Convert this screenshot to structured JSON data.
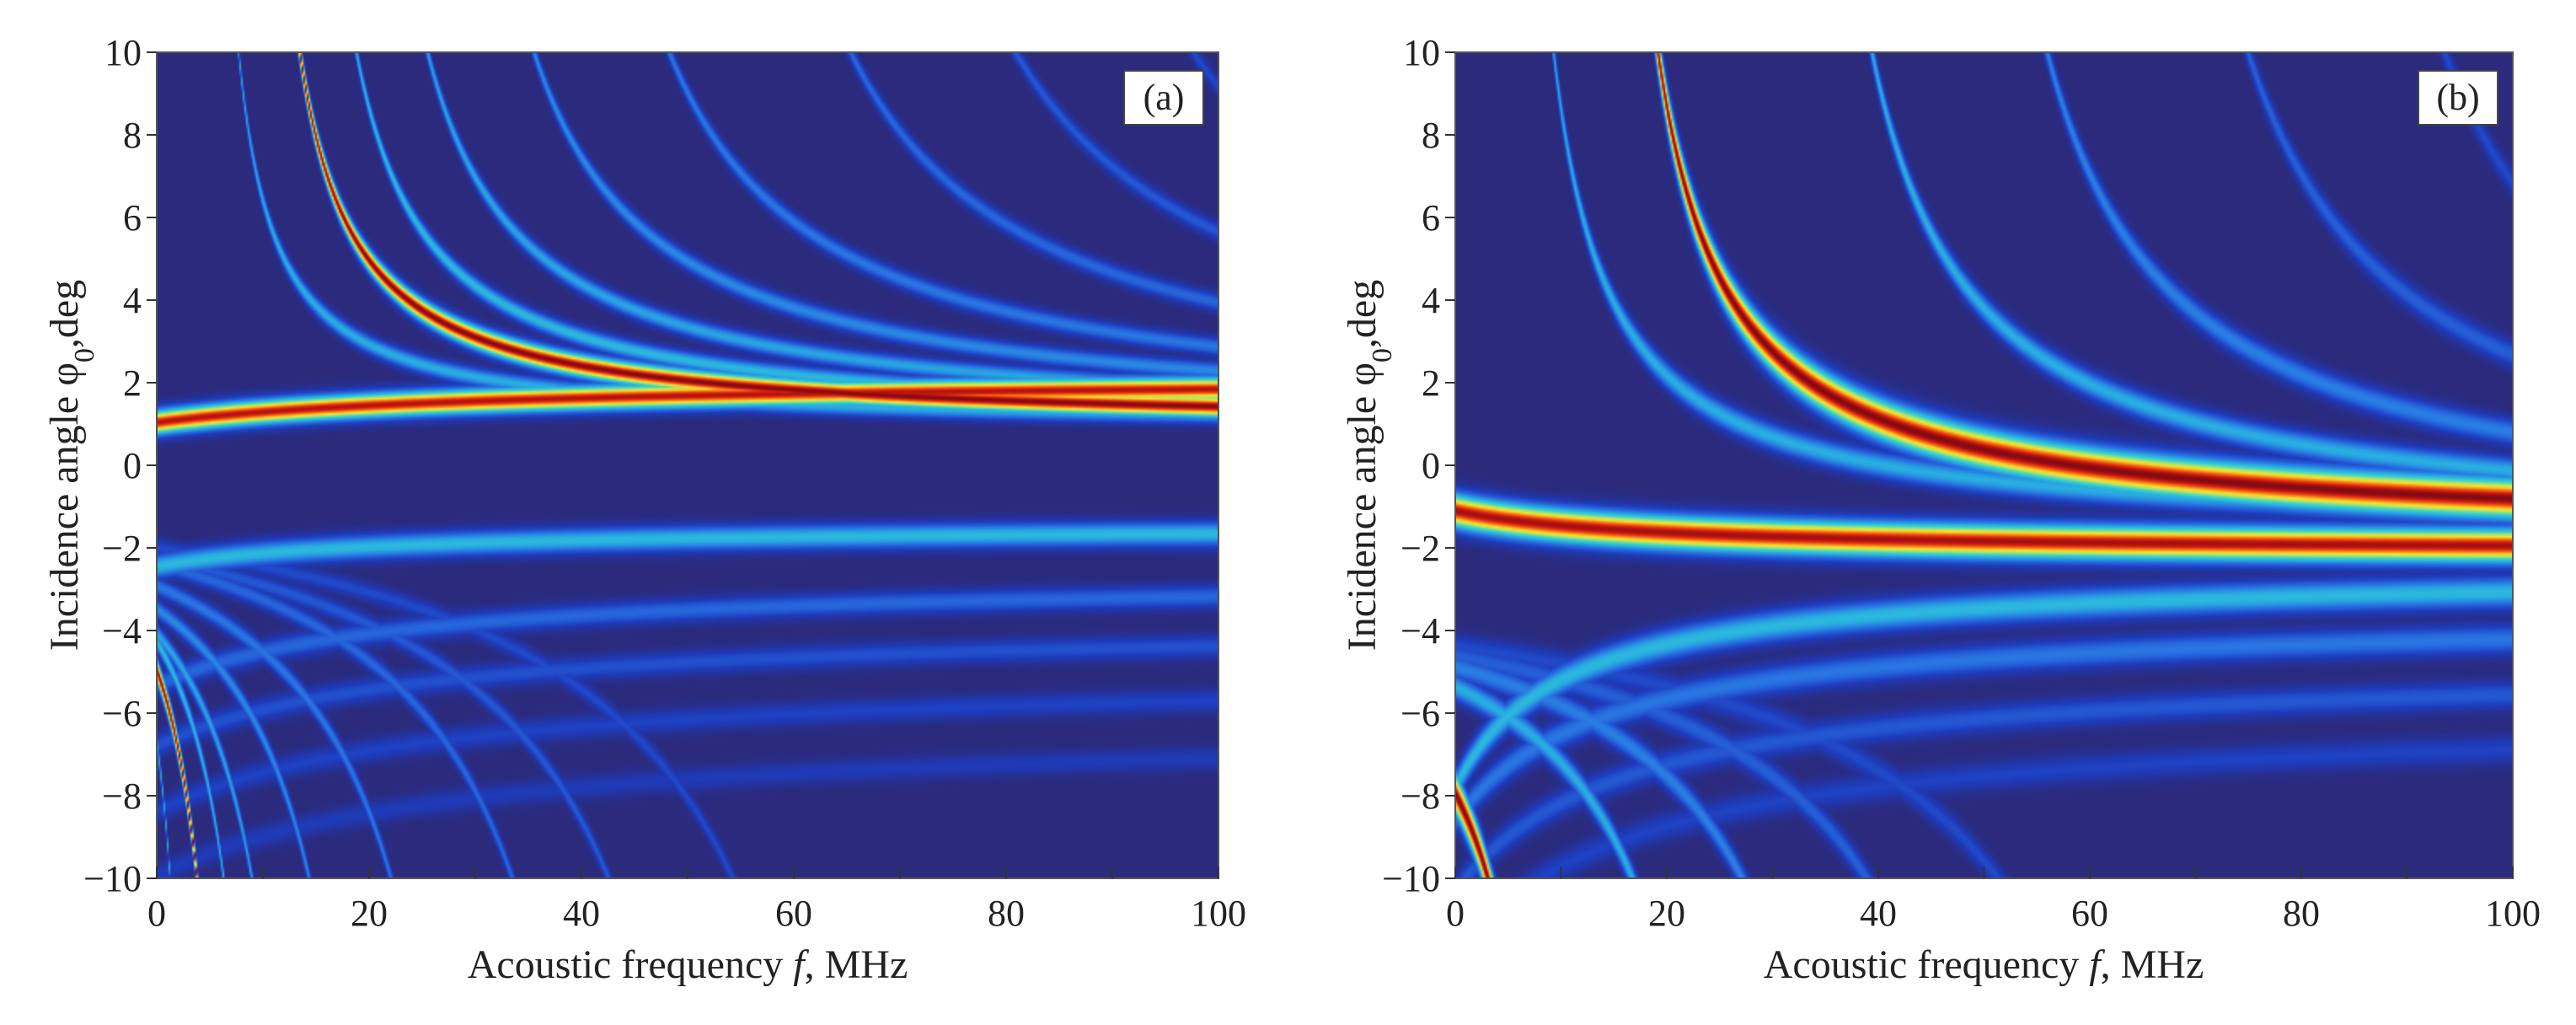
{
  "chart_data": [
    {
      "type": "heatmap",
      "panel_label": "(a)",
      "xlabel": "Acoustic frequency",
      "xlabel_var": "f",
      "xlabel_unit": ", MHz",
      "ylabel_prefix": "Incidence angle φ",
      "ylabel_sub": "0",
      "ylabel_suffix": ",deg",
      "xlim": [
        0,
        100
      ],
      "ylim": [
        -10,
        10
      ],
      "xticks": [
        0,
        20,
        40,
        60,
        80,
        100
      ],
      "yticks": [
        -10,
        -8,
        -6,
        -4,
        -2,
        0,
        2,
        4,
        6,
        8,
        10
      ],
      "ytick_labels": [
        "−10",
        "−8",
        "−6",
        "−4",
        "−2",
        "0",
        "2",
        "4",
        "6",
        "8",
        "10"
      ],
      "colormap": "jet",
      "background_color": "#2b2a7c",
      "curves": [
        {
          "name": "main-upper",
          "f0": 8.2,
          "a": 0.9,
          "b": 48,
          "intensity": 1.0,
          "width": 0.28
        },
        {
          "name": "main-lower",
          "f0": -32,
          "a": 2.1,
          "b": -34,
          "intensity": 0.97,
          "width": 0.3
        },
        {
          "name": "side-1",
          "f0": 4.2,
          "a": 0.9,
          "b": 32,
          "intensity": 0.42,
          "width": 0.22
        },
        {
          "name": "side-2",
          "f0": 12.0,
          "a": 0.9,
          "b": 62,
          "intensity": 0.45,
          "width": 0.22
        },
        {
          "name": "side-3",
          "f0": 16.5,
          "a": 0.9,
          "b": 82,
          "intensity": 0.4,
          "width": 0.22
        },
        {
          "name": "side-4",
          "f0": 24,
          "a": 0.9,
          "b": 105,
          "intensity": 0.34,
          "width": 0.22
        },
        {
          "name": "side-5",
          "f0": 34,
          "a": 0.9,
          "b": 130,
          "intensity": 0.3,
          "width": 0.22
        },
        {
          "name": "side-6",
          "f0": 48,
          "a": 0.9,
          "b": 158,
          "intensity": 0.26,
          "width": 0.22
        },
        {
          "name": "side-7",
          "f0": 60,
          "a": 0.9,
          "b": 190,
          "intensity": 0.22,
          "width": 0.22
        },
        {
          "name": "side-8",
          "f0": 74,
          "a": 0.9,
          "b": 215,
          "intensity": 0.18,
          "width": 0.22
        },
        {
          "name": "low-1",
          "f0": -20,
          "a": -1.5,
          "b": -19,
          "intensity": 0.45,
          "width": 0.3
        },
        {
          "name": "low-2",
          "f0": -22,
          "a": -2.7,
          "b": -58,
          "intensity": 0.26,
          "width": 0.28
        },
        {
          "name": "low-3",
          "f0": -24,
          "a": -3.8,
          "b": -72,
          "intensity": 0.2,
          "width": 0.28
        },
        {
          "name": "low-4",
          "f0": -26,
          "a": -5.0,
          "b": -88,
          "intensity": 0.16,
          "width": 0.28
        },
        {
          "name": "low-5",
          "f0": -28,
          "a": -6.3,
          "b": -102,
          "intensity": 0.13,
          "width": 0.28
        }
      ]
    },
    {
      "type": "heatmap",
      "panel_label": "(b)",
      "xlabel": "Acoustic frequency",
      "xlabel_var": "f",
      "xlabel_unit": ", MHz",
      "ylabel_prefix": "Incidence angle φ",
      "ylabel_sub": "0",
      "ylabel_suffix": ",deg",
      "xlim": [
        0,
        100
      ],
      "ylim": [
        -10,
        10
      ],
      "xticks": [
        0,
        20,
        40,
        60,
        80,
        100
      ],
      "yticks": [
        -10,
        -8,
        -6,
        -4,
        -2,
        0,
        2,
        4,
        6,
        8,
        10
      ],
      "ytick_labels": [
        "−10",
        "−8",
        "−6",
        "−4",
        "−2",
        "0",
        "2",
        "4",
        "6",
        "8",
        "10"
      ],
      "colormap": "jet",
      "background_color": "#2b2a7c",
      "curves": [
        {
          "name": "main-upper",
          "f0": 12.5,
          "a": -1.7,
          "b": 78,
          "intensity": 1.0,
          "width": 0.5
        },
        {
          "name": "main-lower",
          "f0": -18,
          "a": -2.1,
          "b": 18,
          "intensity": 0.98,
          "width": 0.42
        },
        {
          "name": "side-1",
          "f0": 4.0,
          "a": -1.7,
          "b": 62,
          "intensity": 0.42,
          "width": 0.32
        },
        {
          "name": "side-2",
          "f0": 30,
          "a": -1.7,
          "b": 110,
          "intensity": 0.42,
          "width": 0.32
        },
        {
          "name": "side-3",
          "f0": 44,
          "a": -1.7,
          "b": 140,
          "intensity": 0.32,
          "width": 0.32
        },
        {
          "name": "side-4",
          "f0": 60,
          "a": -1.7,
          "b": 175,
          "intensity": 0.24,
          "width": 0.32
        },
        {
          "name": "side-5",
          "f0": 76,
          "a": -1.7,
          "b": 205,
          "intensity": 0.18,
          "width": 0.32
        },
        {
          "name": "low-1",
          "f0": -10,
          "a": -2.6,
          "b": -52,
          "intensity": 0.45,
          "width": 0.38
        },
        {
          "name": "low-2",
          "f0": -14,
          "a": -3.6,
          "b": -70,
          "intensity": 0.3,
          "width": 0.36
        },
        {
          "name": "low-3",
          "f0": -16,
          "a": -4.8,
          "b": -88,
          "intensity": 0.22,
          "width": 0.34
        },
        {
          "name": "low-4",
          "f0": -18,
          "a": -6.0,
          "b": -104,
          "intensity": 0.16,
          "width": 0.34
        }
      ]
    }
  ]
}
